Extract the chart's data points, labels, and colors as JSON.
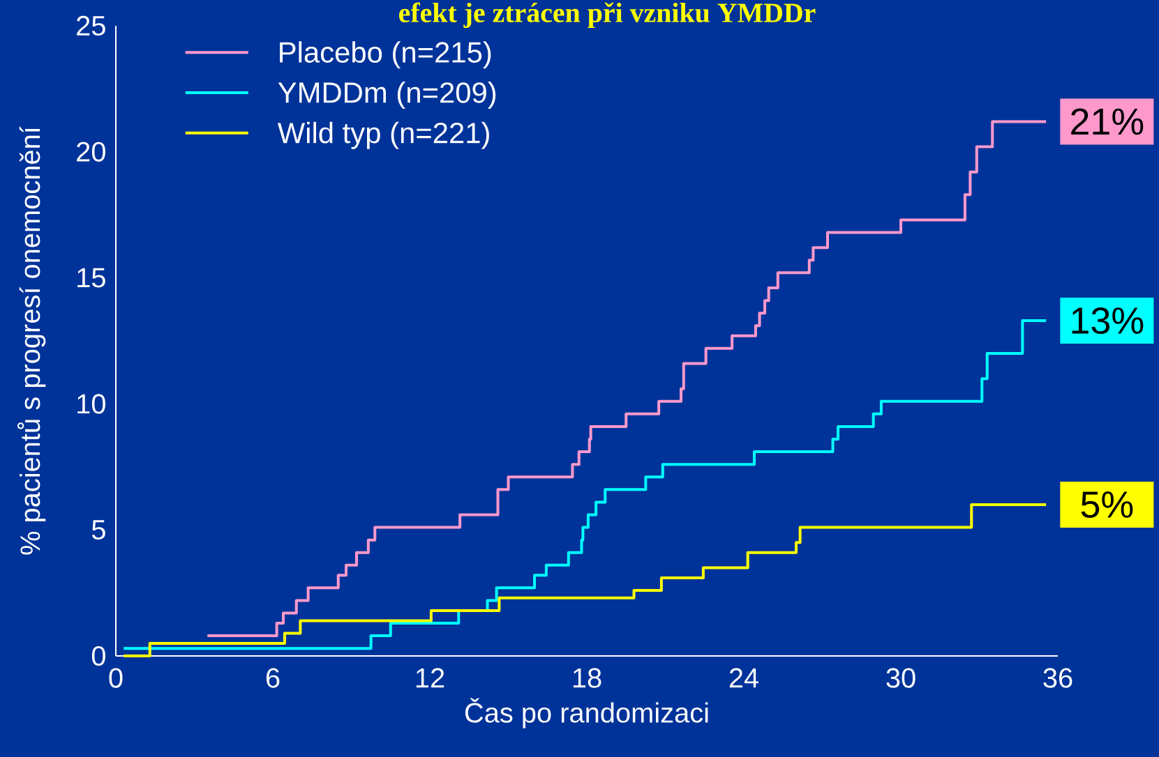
{
  "chart_data": {
    "type": "step",
    "title": "efekt je ztrácen při vzniku YMDDr",
    "xlabel": "Čas po randomizaci",
    "ylabel": "% pacientů s progresí onemocnění",
    "xlim": [
      0,
      36
    ],
    "ylim": [
      0,
      25
    ],
    "xticks": [
      0,
      6,
      12,
      18,
      24,
      30,
      36
    ],
    "yticks": [
      0,
      5,
      10,
      15,
      20,
      25
    ],
    "legend": "top left",
    "grid": false,
    "marker": "none",
    "line_style": "solid",
    "series": [
      {
        "name": "Placebo (n=215)",
        "color": "#ff99cc",
        "x": [
          3.5,
          6.15,
          6.4,
          6.9,
          7.35,
          8.5,
          8.8,
          9.2,
          9.65,
          9.9,
          13.15,
          14.6,
          15.0,
          17.45,
          17.7,
          18.1,
          18.15,
          19.5,
          20.75,
          21.6,
          21.7,
          22.55,
          23.55,
          24.45,
          24.6,
          24.8,
          24.95,
          25.3,
          26.5,
          26.65,
          27.2,
          30.0,
          32.45,
          32.65,
          32.9,
          33.5,
          35.55
        ],
        "values": [
          0.8,
          1.3,
          1.7,
          2.2,
          2.7,
          3.2,
          3.6,
          4.1,
          4.6,
          5.1,
          5.6,
          6.6,
          7.1,
          7.6,
          8.1,
          8.6,
          9.1,
          9.6,
          10.1,
          10.6,
          11.6,
          12.2,
          12.7,
          13.1,
          13.6,
          14.1,
          14.6,
          15.2,
          15.7,
          16.2,
          16.8,
          17.3,
          18.3,
          19.2,
          20.2,
          21.2,
          21.2
        ]
      },
      {
        "name": "YMDDm (n=209)",
        "color": "#00ffff",
        "x": [
          0.3,
          9.75,
          10.5,
          13.1,
          14.2,
          14.55,
          16.0,
          16.45,
          17.3,
          17.8,
          17.85,
          18.05,
          18.35,
          18.7,
          20.25,
          20.9,
          24.4,
          27.4,
          27.6,
          28.95,
          29.25,
          33.1,
          33.3,
          34.65,
          35.55
        ],
        "values": [
          0.3,
          0.8,
          1.3,
          1.8,
          2.2,
          2.7,
          3.2,
          3.6,
          4.1,
          4.6,
          5.1,
          5.6,
          6.1,
          6.6,
          7.1,
          7.6,
          8.1,
          8.6,
          9.1,
          9.6,
          10.1,
          11.0,
          12.0,
          13.3,
          13.3
        ]
      },
      {
        "name": "Wild typ (n=221)",
        "color": "#ffff00",
        "x": [
          0.3,
          1.3,
          6.45,
          7.05,
          12.05,
          14.65,
          19.8,
          20.85,
          22.45,
          24.15,
          26.0,
          26.15,
          32.7,
          35.55
        ],
        "values": [
          0,
          0.5,
          0.9,
          1.4,
          1.8,
          2.3,
          2.6,
          3.1,
          3.5,
          4.1,
          4.5,
          5.1,
          6.0,
          6.0
        ]
      }
    ],
    "annotations": [
      "21%",
      "13%",
      "5%"
    ]
  }
}
